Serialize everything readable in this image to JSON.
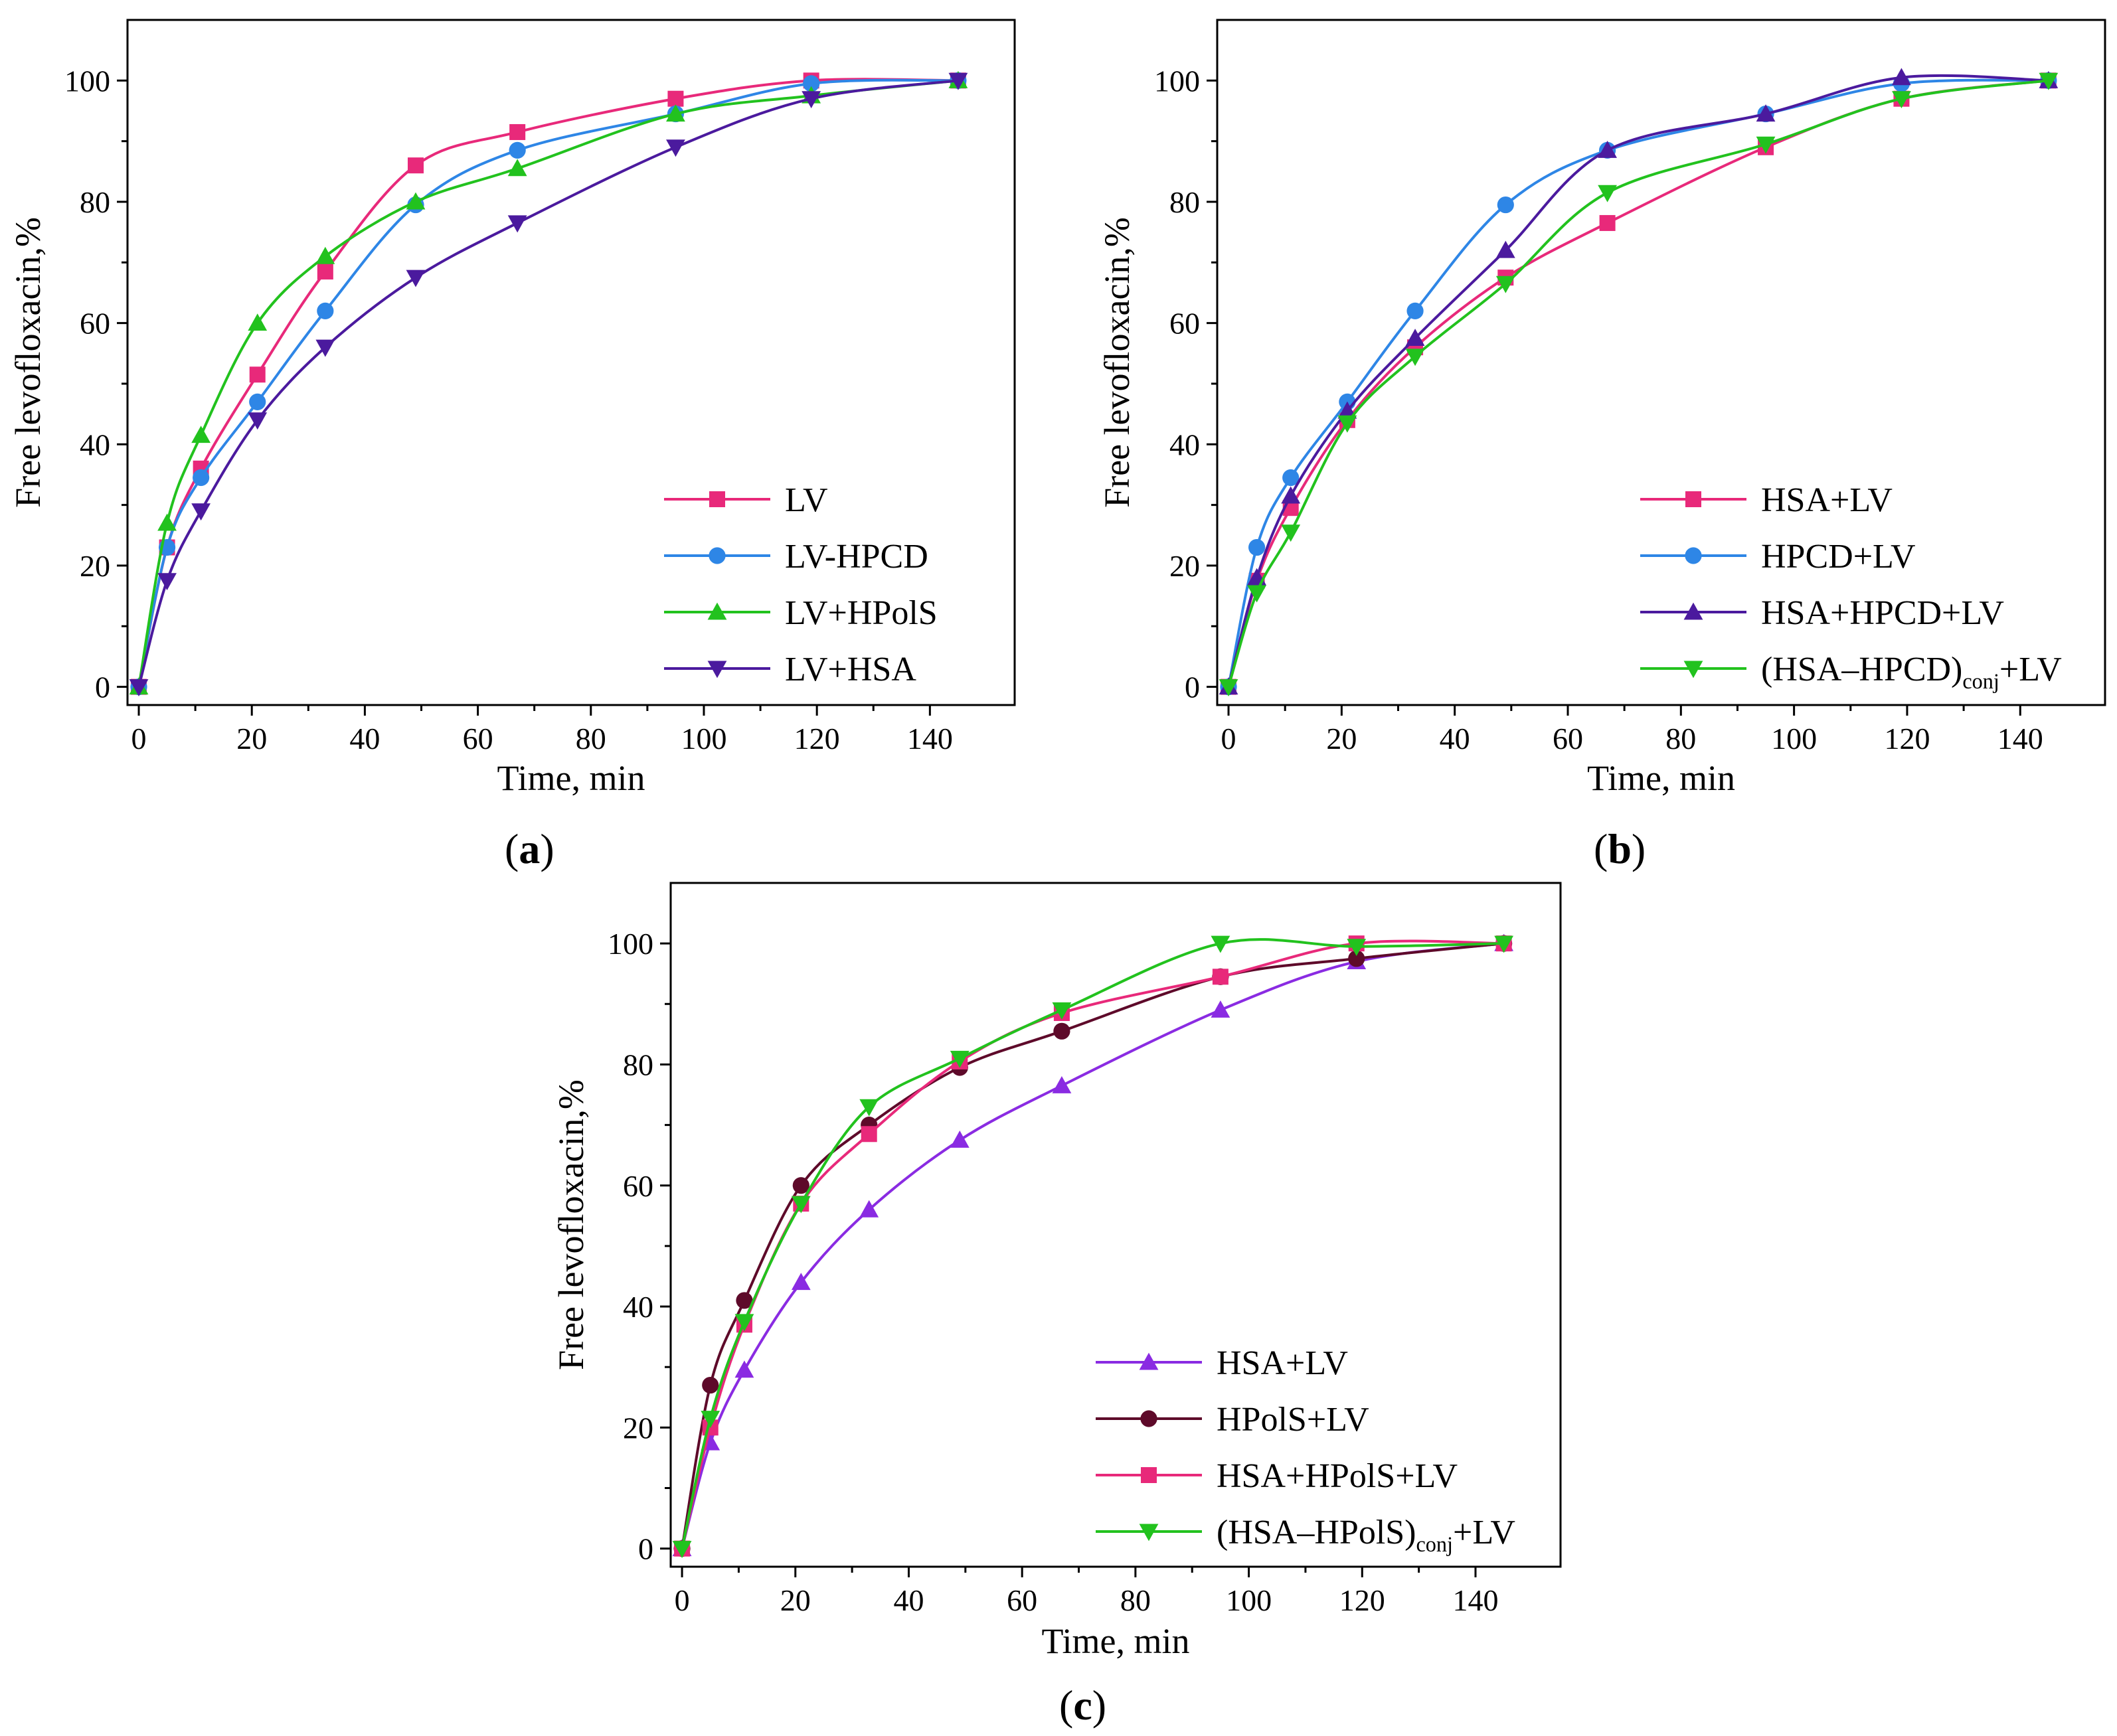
{
  "chart_data": [
    {
      "type": "line",
      "panel_label": "a",
      "xlabel": "Time, min",
      "ylabel": "Free levofloxacin,%",
      "xlim": [
        -2,
        155
      ],
      "ylim": [
        -3,
        110
      ],
      "xticks": [
        0,
        20,
        40,
        60,
        80,
        100,
        120,
        140
      ],
      "yticks": [
        0,
        20,
        40,
        60,
        80,
        100
      ],
      "legend_position": "bottom-right",
      "series": [
        {
          "name": "LV",
          "sub": "",
          "suffix": "",
          "color": "#e8297a",
          "marker": "square",
          "x": [
            0,
            5,
            11,
            21,
            33,
            49,
            67,
            95,
            119,
            145
          ],
          "y": [
            0,
            23,
            36,
            51.5,
            68.5,
            86,
            91.5,
            97,
            100,
            100
          ]
        },
        {
          "name": "LV-HPCD",
          "sub": "",
          "suffix": "",
          "color": "#2e86e6",
          "marker": "circle",
          "x": [
            0,
            5,
            11,
            21,
            33,
            49,
            67,
            95,
            119,
            145
          ],
          "y": [
            0,
            23,
            34.5,
            47,
            62,
            79.5,
            88.5,
            94.5,
            99.5,
            100
          ]
        },
        {
          "name": "LV+HPolS",
          "sub": "",
          "suffix": "",
          "color": "#22c21e",
          "marker": "triangle-up",
          "x": [
            0,
            5,
            11,
            21,
            33,
            49,
            67,
            95,
            119,
            145
          ],
          "y": [
            0,
            27,
            41.5,
            60,
            71,
            80,
            85.5,
            94.5,
            97.5,
            100
          ]
        },
        {
          "name": "LV+HSA",
          "sub": "",
          "suffix": "",
          "color": "#4b1a9e",
          "marker": "triangle-down",
          "x": [
            0,
            5,
            11,
            21,
            33,
            49,
            67,
            95,
            119,
            145
          ],
          "y": [
            0,
            17.5,
            29,
            44,
            56,
            67.5,
            76.5,
            89,
            97,
            100
          ]
        }
      ]
    },
    {
      "type": "line",
      "panel_label": "b",
      "xlabel": "Time, min",
      "ylabel": "Free levofloxacin,%",
      "xlim": [
        -2,
        155
      ],
      "ylim": [
        -3,
        110
      ],
      "xticks": [
        0,
        20,
        40,
        60,
        80,
        100,
        120,
        140
      ],
      "yticks": [
        0,
        20,
        40,
        60,
        80,
        100
      ],
      "legend_position": "bottom-right",
      "series": [
        {
          "name": "HSA+LV",
          "sub": "",
          "suffix": "",
          "color": "#e8297a",
          "marker": "square",
          "x": [
            0,
            5,
            11,
            21,
            33,
            49,
            67,
            95,
            119,
            145
          ],
          "y": [
            0,
            17.5,
            29.5,
            44,
            56,
            67.5,
            76.5,
            89,
            97,
            100
          ]
        },
        {
          "name": "HPCD+LV",
          "sub": "",
          "suffix": "",
          "color": "#2e86e6",
          "marker": "circle",
          "x": [
            0,
            5,
            11,
            21,
            33,
            49,
            67,
            95,
            119,
            145
          ],
          "y": [
            0,
            23,
            34.5,
            47,
            62,
            79.5,
            88.5,
            94.5,
            99.5,
            100
          ]
        },
        {
          "name": "HSA+HPCD+LV",
          "sub": "",
          "suffix": "",
          "color": "#4b1a9e",
          "marker": "triangle-up",
          "x": [
            0,
            5,
            11,
            21,
            33,
            49,
            67,
            95,
            119,
            145
          ],
          "y": [
            0,
            18,
            31.5,
            45.5,
            57.5,
            72,
            88.5,
            94.5,
            100.5,
            100
          ]
        },
        {
          "name": "(HSA–HPCD)",
          "sub": "conj",
          "suffix": "+LV",
          "color": "#22c21e",
          "marker": "triangle-down",
          "x": [
            0,
            5,
            11,
            21,
            33,
            49,
            67,
            95,
            119,
            145
          ],
          "y": [
            0,
            15.5,
            25.5,
            43.5,
            54.5,
            66.5,
            81.5,
            89.5,
            97,
            100
          ]
        }
      ]
    },
    {
      "type": "line",
      "panel_label": "c",
      "xlabel": "Time, min",
      "ylabel": "Free levofloxacin,%",
      "xlim": [
        -2,
        155
      ],
      "ylim": [
        -3,
        110
      ],
      "xticks": [
        0,
        20,
        40,
        60,
        80,
        100,
        120,
        140
      ],
      "yticks": [
        0,
        20,
        40,
        60,
        80,
        100
      ],
      "legend_position": "bottom-right",
      "series": [
        {
          "name": "HSA+LV",
          "sub": "",
          "suffix": "",
          "color": "#8a2be2",
          "marker": "triangle-up",
          "x": [
            0,
            5,
            11,
            21,
            33,
            49,
            67,
            95,
            119,
            145
          ],
          "y": [
            0,
            17.5,
            29.5,
            44,
            56,
            67.5,
            76.5,
            89,
            97,
            100
          ]
        },
        {
          "name": "HPolS+LV",
          "sub": "",
          "suffix": "",
          "color": "#5e0a2a",
          "marker": "circle",
          "x": [
            0,
            5,
            11,
            21,
            33,
            49,
            67,
            95,
            119,
            145
          ],
          "y": [
            0,
            27,
            41,
            60,
            70,
            79.5,
            85.5,
            94.5,
            97.5,
            100
          ]
        },
        {
          "name": "HSA+HPolS+LV",
          "sub": "",
          "suffix": "",
          "color": "#e8297a",
          "marker": "square",
          "x": [
            0,
            5,
            11,
            21,
            33,
            49,
            67,
            95,
            119,
            145
          ],
          "y": [
            0,
            20,
            37,
            57,
            68.5,
            80.5,
            88.5,
            94.5,
            100,
            100
          ]
        },
        {
          "name": "(HSA–HPolS)",
          "sub": "conj",
          "suffix": "+LV",
          "color": "#22c21e",
          "marker": "triangle-down",
          "x": [
            0,
            5,
            11,
            21,
            33,
            49,
            67,
            95,
            119,
            145
          ],
          "y": [
            0,
            21.5,
            37.5,
            57,
            73,
            81,
            89,
            100,
            99.5,
            100
          ]
        }
      ]
    }
  ]
}
